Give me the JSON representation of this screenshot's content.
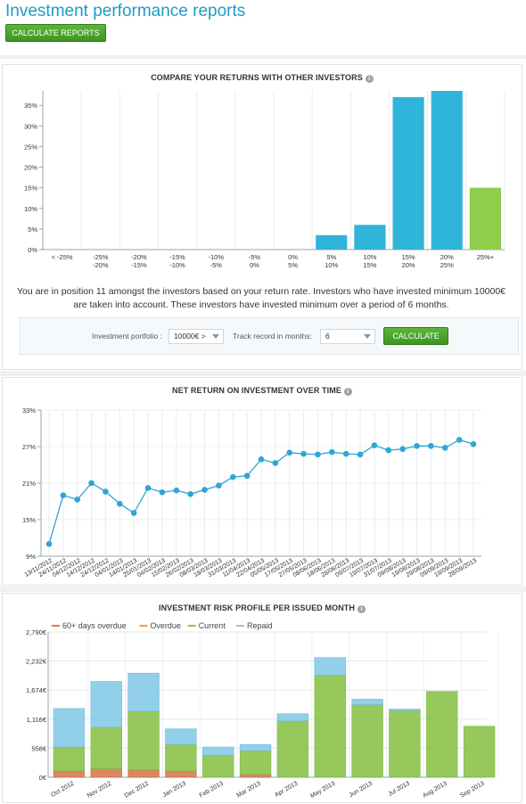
{
  "page": {
    "title": "Investment performance reports",
    "calculate_reports_label": "CALCULATE REPORTS"
  },
  "compare": {
    "title": "COMPARE YOUR RETURNS WITH OTHER INVESTORS",
    "info_icon": "info-icon",
    "description": "You are in position 11 amongst the investors based on your return rate. Investors who have invested minimum 10000€ are taken into account. These investors have invested minimum over a period of 6 months.",
    "form": {
      "portfolio_label": "Investment portfolio :",
      "portfolio_value": "10000€ >",
      "track_label": "Track record in months:",
      "track_value": "6",
      "calculate_label": "CALCULATE"
    }
  },
  "net_return": {
    "title": "NET RETURN ON INVESTMENT OVER TIME"
  },
  "risk_profile": {
    "title": "INVESTMENT RISK PROFILE PER ISSUED MONTH"
  },
  "colors": {
    "blue": "#2fb5d9",
    "green": "#8fce4a",
    "line": "#2fa6d4",
    "overdue60": "#d97b52",
    "overdue": "#f0a030",
    "current": "#8bc34a",
    "repaid": "#86cbe6"
  },
  "chart_data": [
    {
      "type": "bar",
      "categories": [
        "< -25%",
        "-25%\n-20%",
        "-20%\n-15%",
        "-15%\n-10%",
        "-10%\n-5%",
        "-5%\n0%",
        "0%\n5%",
        "5%\n10%",
        "10%\n15%",
        "15%\n20%",
        "20%\n25%",
        "25%+"
      ],
      "values": [
        0,
        0,
        0,
        0,
        0,
        0,
        0,
        3.5,
        6,
        37,
        38.5,
        15
      ],
      "highlight_index": 11,
      "ylim": [
        0,
        38.5
      ],
      "yticks": [
        "0%",
        "5%",
        "10%",
        "15%",
        "20%",
        "25%",
        "30%",
        "35%"
      ],
      "grid": true
    },
    {
      "type": "line",
      "x": [
        "13/11/2012",
        "24/11/2012",
        "04/12/2012",
        "14/12/2012",
        "24/12/2012",
        "04/01/2013",
        "14/01/2013",
        "25/01/2013",
        "04/02/2013",
        "15/02/2013",
        "26/02/2013",
        "08/03/2013",
        "18/03/2013",
        "31/03/2013",
        "11/04/2013",
        "22/04/2013",
        "05/05/2013",
        "17/05/2013",
        "27/05/2013",
        "08/06/2013",
        "18/06/2013",
        "28/06/2013",
        "09/07/2013",
        "19/07/2013",
        "31/07/2013",
        "09/08/2013",
        "19/08/2013",
        "29/08/2013",
        "09/09/2013",
        "19/09/2013",
        "28/09/2013"
      ],
      "values": [
        11,
        19,
        18.3,
        21,
        19.6,
        17.6,
        16.1,
        20.2,
        19.5,
        19.8,
        19.2,
        19.9,
        20.6,
        22,
        22.2,
        24.9,
        24.3,
        26,
        25.8,
        25.7,
        26.1,
        25.8,
        25.7,
        27.2,
        26.4,
        26.6,
        27.1,
        27.1,
        26.8,
        28.1,
        27.4
      ],
      "ylim": [
        9,
        33
      ],
      "yticks": [
        "9%",
        "15%",
        "21%",
        "27%",
        "33%"
      ],
      "grid": true
    },
    {
      "type": "bar",
      "stacked": true,
      "categories": [
        "Oct 2012",
        "Nov 2012",
        "Dec 2012",
        "Jan 2013",
        "Feb 2013",
        "Mar 2013",
        "Apr 2013",
        "May 2013",
        "Jun 2013",
        "Jul 2013",
        "Aug 2013",
        "Sep 2013"
      ],
      "series": [
        {
          "name": "60+ days overdue",
          "values": [
            120,
            160,
            140,
            120,
            0,
            50,
            0,
            0,
            0,
            0,
            0,
            0
          ]
        },
        {
          "name": "Overdue",
          "values": [
            0,
            0,
            0,
            0,
            0,
            0,
            0,
            0,
            0,
            0,
            0,
            0
          ]
        },
        {
          "name": "Current",
          "values": [
            460,
            800,
            1130,
            510,
            420,
            460,
            1080,
            1960,
            1390,
            1280,
            1650,
            980
          ]
        },
        {
          "name": "Repaid",
          "values": [
            740,
            880,
            730,
            300,
            160,
            120,
            140,
            340,
            110,
            30,
            0,
            0
          ]
        }
      ],
      "ylim": [
        0,
        2790
      ],
      "yticks": [
        "0€",
        "558€",
        "1,116€",
        "1,674€",
        "2,232€",
        "2,790€"
      ],
      "legend": "top-left",
      "grid": true
    }
  ]
}
